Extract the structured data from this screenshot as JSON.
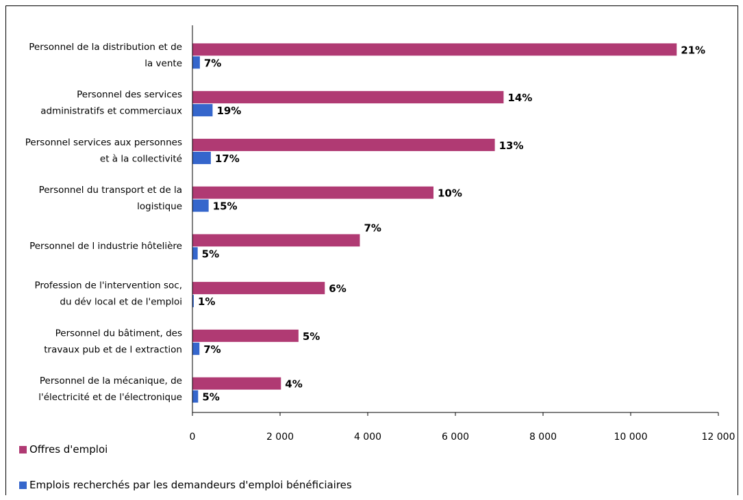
{
  "chart_data": {
    "type": "bar",
    "orientation": "horizontal",
    "categories": [
      [
        "Personnel de la distribution et de",
        "la vente"
      ],
      [
        "Personnel des services",
        "administratifs et commerciaux"
      ],
      [
        "Personnel services aux personnes",
        "et à la collectivité"
      ],
      [
        "Personnel du transport et de la",
        "logistique"
      ],
      [
        "Personnel de l industrie hôtelière"
      ],
      [
        "Profession de l'intervention soc,",
        "du dév local et de l'emploi"
      ],
      [
        "Personnel du bâtiment, des",
        "travaux pub et de l extraction"
      ],
      [
        "Personnel de la mécanique, de",
        "l'électricité et de l'électronique"
      ]
    ],
    "series": [
      {
        "name": "Offres d'emploi",
        "color": "#B03A73",
        "values": [
          11050,
          7100,
          6900,
          5500,
          3820,
          3020,
          2420,
          2020
        ],
        "labels": [
          "21%",
          "14%",
          "13%",
          "10%",
          "7%",
          "6%",
          "5%",
          "4%"
        ]
      },
      {
        "name": "Emplois recherchés par les demandeurs d'emploi bénéficiaires",
        "color": "#3566CC",
        "values": [
          170,
          460,
          420,
          370,
          120,
          30,
          160,
          130
        ],
        "labels": [
          "7%",
          "19%",
          "17%",
          "15%",
          "5%",
          "1%",
          "7%",
          "5%"
        ]
      }
    ],
    "xlim": [
      0,
      12000
    ],
    "xticks": [
      0,
      2000,
      4000,
      6000,
      8000,
      10000,
      12000
    ],
    "xtick_labels": [
      "0",
      "2 000",
      "4 000",
      "6 000",
      "8 000",
      "10 000",
      "12 000"
    ],
    "grid": false,
    "legend_position": "bottom-left"
  }
}
